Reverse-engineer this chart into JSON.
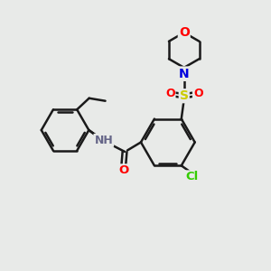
{
  "background_color": "#e8eae8",
  "bond_color": "#1a1a1a",
  "atom_colors": {
    "O": "#ff0000",
    "N": "#0000dd",
    "S": "#cccc00",
    "Cl": "#33cc00",
    "H": "#666688",
    "C": "#1a1a1a"
  },
  "figsize": [
    3.0,
    3.0
  ],
  "dpi": 100
}
